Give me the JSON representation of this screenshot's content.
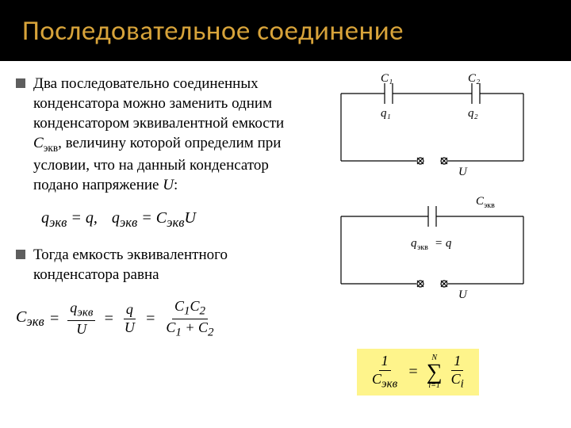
{
  "header": {
    "title": "Последовательное соединение",
    "title_color": "#d7a33a",
    "header_bg": "#000000"
  },
  "text": {
    "para1_pre": "Два последовательно соединенных конденсатора можно заменить одним конденсатором эквивалентной емкости ",
    "c_ekv_sym": "C",
    "sub_ekv": "экв",
    "para1_mid": ", величину которой определим при условии, что на данный конденсатор подано напряжение ",
    "u_sym": "U",
    "para1_end": ":",
    "para2": "Тогда емкость эквивалентного конденсатора равна"
  },
  "formulas": {
    "line1_a": "q<sub>экв</sub> = q,",
    "line1_b": "q<sub>экв</sub> = C<sub>экв</sub>U",
    "lhs": "C<sub>экв</sub>",
    "f1_num": "q<sub>экв</sub>",
    "f1_den": "U",
    "f2_num": "q",
    "f2_den": "U",
    "f3_num": "C<sub>1</sub>C<sub>2</sub>",
    "f3_den": "C<sub>1</sub> + C<sub>2</sub>",
    "hl_lhs_num": "1",
    "hl_lhs_den": "C<sub>экв</sub>",
    "hl_sum_top": "N",
    "hl_sum_bot": "i=1",
    "hl_rhs_num": "1",
    "hl_rhs_den": "C<sub>i</sub>"
  },
  "diagrams": {
    "circuit1": {
      "c1_label": "C₁",
      "c2_label": "C₂",
      "q1_label": "q₁",
      "q2_label": "q₂",
      "u_label": "U"
    },
    "circuit2": {
      "c_label": "C<sub>экв</sub>",
      "q_label": "q<sub>экв</sub> = q",
      "u_label": "U"
    }
  },
  "styling": {
    "highlight_bg": "#fef48b",
    "stroke": "#000000",
    "stroke_width": 1.2
  }
}
